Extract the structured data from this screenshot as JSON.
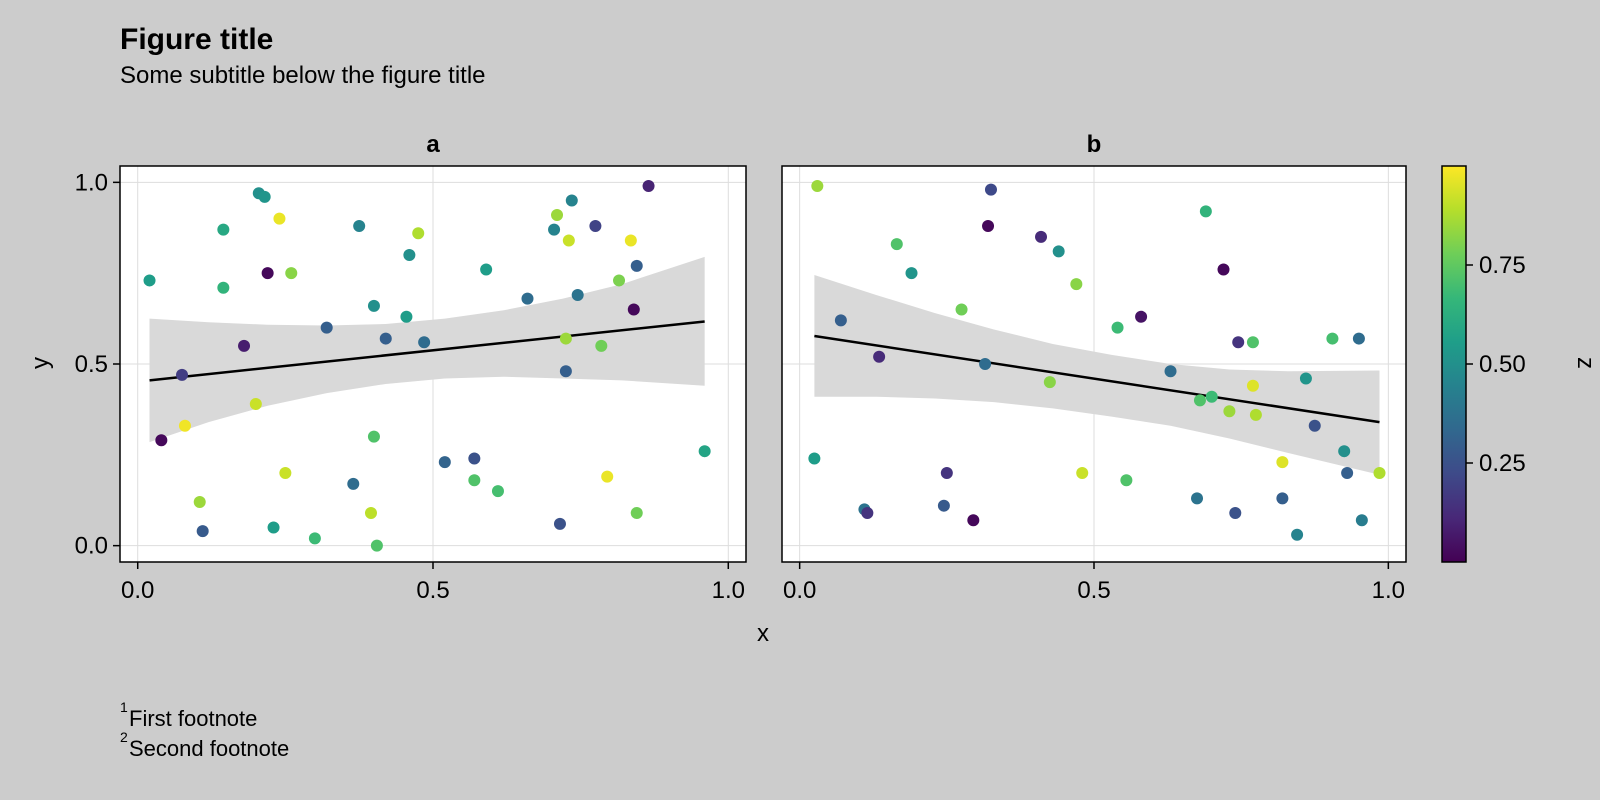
{
  "figure": {
    "title": "Figure title",
    "subtitle": "Some subtitle below the figure title",
    "footnotes": [
      {
        "marker": "1",
        "text": "First footnote"
      },
      {
        "marker": "2",
        "text": "Second footnote"
      }
    ]
  },
  "colors": {
    "background": "#cccccc",
    "panel": "#ffffff",
    "grid": "#dddddd",
    "band": "#d9d9d9",
    "trend": "#000000",
    "viridis": [
      "#440154",
      "#482878",
      "#3e4a89",
      "#31688e",
      "#26828e",
      "#1f9e89",
      "#35b779",
      "#6ece58",
      "#b5de2b",
      "#fde725"
    ]
  },
  "chart_data": [
    {
      "type": "scatter",
      "panel_title": "a",
      "xlabel": "x",
      "ylabel": "y",
      "xlim": [
        -0.03,
        1.03
      ],
      "ylim": [
        -0.045,
        1.045
      ],
      "xticks": [
        0.0,
        0.5,
        1.0
      ],
      "xtick_labels": [
        "0.0",
        "0.5",
        "1.0"
      ],
      "yticks": [
        0.0,
        0.5,
        1.0
      ],
      "ytick_labels": [
        "0.0",
        "0.5",
        "1.0"
      ],
      "grid": true,
      "points": [
        [
          0.02,
          0.73,
          0.55
        ],
        [
          0.04,
          0.29,
          0.02
        ],
        [
          0.075,
          0.47,
          0.18
        ],
        [
          0.08,
          0.33,
          0.98
        ],
        [
          0.105,
          0.12,
          0.85
        ],
        [
          0.11,
          0.04,
          0.28
        ],
        [
          0.145,
          0.87,
          0.6
        ],
        [
          0.145,
          0.71,
          0.65
        ],
        [
          0.18,
          0.55,
          0.08
        ],
        [
          0.2,
          0.39,
          0.92
        ],
        [
          0.205,
          0.97,
          0.5
        ],
        [
          0.215,
          0.96,
          0.52
        ],
        [
          0.22,
          0.75,
          0.02
        ],
        [
          0.23,
          0.05,
          0.55
        ],
        [
          0.24,
          0.9,
          0.97
        ],
        [
          0.25,
          0.2,
          0.92
        ],
        [
          0.26,
          0.75,
          0.82
        ],
        [
          0.3,
          0.02,
          0.68
        ],
        [
          0.32,
          0.6,
          0.3
        ],
        [
          0.365,
          0.17,
          0.35
        ],
        [
          0.375,
          0.88,
          0.45
        ],
        [
          0.395,
          0.09,
          0.9
        ],
        [
          0.4,
          0.66,
          0.5
        ],
        [
          0.4,
          0.3,
          0.72
        ],
        [
          0.405,
          0.0,
          0.72
        ],
        [
          0.42,
          0.57,
          0.3
        ],
        [
          0.455,
          0.63,
          0.55
        ],
        [
          0.46,
          0.8,
          0.5
        ],
        [
          0.475,
          0.86,
          0.88
        ],
        [
          0.485,
          0.56,
          0.35
        ],
        [
          0.52,
          0.23,
          0.32
        ],
        [
          0.57,
          0.18,
          0.72
        ],
        [
          0.57,
          0.24,
          0.25
        ],
        [
          0.59,
          0.76,
          0.55
        ],
        [
          0.61,
          0.15,
          0.7
        ],
        [
          0.66,
          0.68,
          0.35
        ],
        [
          0.705,
          0.87,
          0.45
        ],
        [
          0.71,
          0.91,
          0.85
        ],
        [
          0.715,
          0.06,
          0.25
        ],
        [
          0.725,
          0.57,
          0.85
        ],
        [
          0.725,
          0.48,
          0.3
        ],
        [
          0.73,
          0.84,
          0.92
        ],
        [
          0.735,
          0.95,
          0.45
        ],
        [
          0.745,
          0.69,
          0.38
        ],
        [
          0.775,
          0.88,
          0.2
        ],
        [
          0.785,
          0.55,
          0.78
        ],
        [
          0.795,
          0.19,
          0.97
        ],
        [
          0.815,
          0.73,
          0.8
        ],
        [
          0.835,
          0.84,
          0.97
        ],
        [
          0.84,
          0.65,
          0.02
        ],
        [
          0.845,
          0.77,
          0.3
        ],
        [
          0.845,
          0.09,
          0.78
        ],
        [
          0.865,
          0.99,
          0.1
        ],
        [
          0.96,
          0.26,
          0.58
        ]
      ],
      "trend": {
        "x0": 0.02,
        "y0": 0.455,
        "x1": 0.96,
        "y1": 0.617
      },
      "band": {
        "x": [
          0.02,
          0.12,
          0.22,
          0.32,
          0.42,
          0.52,
          0.62,
          0.72,
          0.82,
          0.96
        ],
        "upper": [
          0.625,
          0.615,
          0.608,
          0.606,
          0.61,
          0.625,
          0.648,
          0.68,
          0.72,
          0.795
        ],
        "lower": [
          0.285,
          0.34,
          0.385,
          0.42,
          0.445,
          0.46,
          0.465,
          0.46,
          0.455,
          0.44
        ]
      }
    },
    {
      "type": "scatter",
      "panel_title": "b",
      "xlabel": "x",
      "ylabel": "",
      "xlim": [
        -0.03,
        1.03
      ],
      "ylim": [
        -0.045,
        1.045
      ],
      "xticks": [
        0.0,
        0.5,
        1.0
      ],
      "xtick_labels": [
        "0.0",
        "0.5",
        "1.0"
      ],
      "yticks": [
        0.0,
        0.5,
        1.0
      ],
      "ytick_labels": [],
      "grid": true,
      "points": [
        [
          0.025,
          0.24,
          0.55
        ],
        [
          0.03,
          0.99,
          0.85
        ],
        [
          0.07,
          0.62,
          0.3
        ],
        [
          0.11,
          0.1,
          0.38
        ],
        [
          0.115,
          0.09,
          0.15
        ],
        [
          0.135,
          0.52,
          0.12
        ],
        [
          0.165,
          0.83,
          0.72
        ],
        [
          0.19,
          0.75,
          0.52
        ],
        [
          0.245,
          0.11,
          0.28
        ],
        [
          0.25,
          0.2,
          0.15
        ],
        [
          0.275,
          0.65,
          0.78
        ],
        [
          0.295,
          0.07,
          0.02
        ],
        [
          0.315,
          0.5,
          0.35
        ],
        [
          0.32,
          0.88,
          0.02
        ],
        [
          0.325,
          0.98,
          0.22
        ],
        [
          0.41,
          0.85,
          0.12
        ],
        [
          0.425,
          0.45,
          0.82
        ],
        [
          0.44,
          0.81,
          0.5
        ],
        [
          0.47,
          0.72,
          0.82
        ],
        [
          0.48,
          0.2,
          0.92
        ],
        [
          0.54,
          0.6,
          0.68
        ],
        [
          0.555,
          0.18,
          0.72
        ],
        [
          0.58,
          0.63,
          0.05
        ],
        [
          0.63,
          0.48,
          0.35
        ],
        [
          0.675,
          0.13,
          0.38
        ],
        [
          0.68,
          0.4,
          0.72
        ],
        [
          0.69,
          0.92,
          0.65
        ],
        [
          0.7,
          0.41,
          0.68
        ],
        [
          0.72,
          0.76,
          0.02
        ],
        [
          0.73,
          0.37,
          0.85
        ],
        [
          0.74,
          0.09,
          0.25
        ],
        [
          0.745,
          0.56,
          0.15
        ],
        [
          0.77,
          0.44,
          0.95
        ],
        [
          0.77,
          0.56,
          0.72
        ],
        [
          0.775,
          0.36,
          0.88
        ],
        [
          0.82,
          0.13,
          0.3
        ],
        [
          0.82,
          0.23,
          0.95
        ],
        [
          0.845,
          0.03,
          0.45
        ],
        [
          0.86,
          0.46,
          0.52
        ],
        [
          0.875,
          0.33,
          0.25
        ],
        [
          0.905,
          0.57,
          0.7
        ],
        [
          0.925,
          0.26,
          0.5
        ],
        [
          0.93,
          0.2,
          0.3
        ],
        [
          0.95,
          0.57,
          0.35
        ],
        [
          0.955,
          0.07,
          0.42
        ],
        [
          0.985,
          0.2,
          0.88
        ]
      ],
      "trend": {
        "x0": 0.025,
        "y0": 0.577,
        "x1": 0.985,
        "y1": 0.34
      },
      "band": {
        "x": [
          0.025,
          0.13,
          0.23,
          0.33,
          0.43,
          0.53,
          0.63,
          0.73,
          0.83,
          0.985
        ],
        "upper": [
          0.745,
          0.69,
          0.64,
          0.595,
          0.555,
          0.525,
          0.5,
          0.485,
          0.48,
          0.482
        ],
        "lower": [
          0.41,
          0.41,
          0.405,
          0.395,
          0.378,
          0.355,
          0.33,
          0.295,
          0.255,
          0.195
        ]
      }
    }
  ],
  "colorbar": {
    "label": "z",
    "range": [
      0.0,
      1.0
    ],
    "ticks": [
      0.25,
      0.5,
      0.75
    ],
    "tick_labels": [
      "0.25",
      "0.50",
      "0.75"
    ]
  }
}
